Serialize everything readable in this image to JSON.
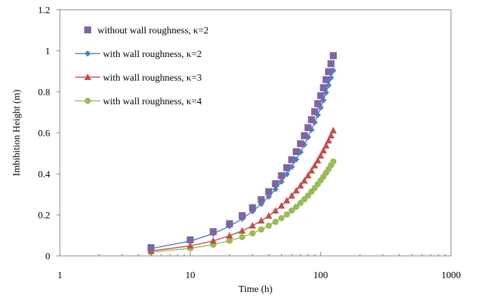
{
  "chart_data": {
    "type": "scatter",
    "title": "",
    "xlabel": "Time (h)",
    "ylabel": "Imbibition Height (m)",
    "x_scale": "log",
    "xlim": [
      1,
      1000
    ],
    "ylim": [
      0,
      1.2
    ],
    "x_ticks": [
      1,
      10,
      100,
      1000
    ],
    "x_tick_labels": [
      "1",
      "10",
      "100",
      "1000"
    ],
    "y_ticks": [
      0,
      0.2,
      0.4,
      0.6,
      0.8,
      1,
      1.2
    ],
    "y_tick_labels": [
      "0",
      "0.2",
      "0.4",
      "0.6",
      "0.8",
      "1",
      "1.2"
    ],
    "grid": false,
    "legend_position": "top-left",
    "series": [
      {
        "name": "without wall roughness, κ=2",
        "color": "#8064a2",
        "marker": "square",
        "line": false,
        "x": [
          5,
          10,
          15,
          20,
          25,
          30,
          35,
          40,
          45,
          50,
          55,
          60,
          65,
          70,
          75,
          80,
          85,
          90,
          95,
          100,
          105,
          110,
          115,
          120,
          125
        ],
        "y": [
          0.04,
          0.078,
          0.118,
          0.157,
          0.196,
          0.235,
          0.274,
          0.313,
          0.352,
          0.391,
          0.43,
          0.469,
          0.508,
          0.547,
          0.586,
          0.625,
          0.664,
          0.703,
          0.742,
          0.781,
          0.82,
          0.859,
          0.898,
          0.937,
          0.976
        ]
      },
      {
        "name": "with wall roughness, κ=2",
        "color": "#4f81bd",
        "marker": "diamond",
        "line": true,
        "x": [
          5,
          10,
          15,
          20,
          25,
          30,
          35,
          40,
          45,
          50,
          55,
          60,
          65,
          70,
          75,
          80,
          85,
          90,
          95,
          100,
          105,
          110,
          115,
          120,
          125
        ],
        "y": [
          0.036,
          0.072,
          0.108,
          0.145,
          0.181,
          0.217,
          0.253,
          0.289,
          0.325,
          0.362,
          0.398,
          0.434,
          0.47,
          0.506,
          0.542,
          0.579,
          0.615,
          0.651,
          0.687,
          0.723,
          0.759,
          0.796,
          0.832,
          0.868,
          0.904
        ]
      },
      {
        "name": "with wall roughness, κ=3",
        "color": "#c0504d",
        "marker": "triangle",
        "line": true,
        "x": [
          5,
          10,
          15,
          20,
          25,
          30,
          35,
          40,
          45,
          50,
          55,
          60,
          65,
          70,
          75,
          80,
          85,
          90,
          95,
          100,
          105,
          110,
          115,
          120,
          125
        ],
        "y": [
          0.024,
          0.049,
          0.073,
          0.098,
          0.122,
          0.147,
          0.171,
          0.195,
          0.22,
          0.244,
          0.269,
          0.293,
          0.318,
          0.342,
          0.366,
          0.391,
          0.415,
          0.44,
          0.464,
          0.488,
          0.513,
          0.537,
          0.562,
          0.586,
          0.611
        ]
      },
      {
        "name": "with wall roughness, κ=4",
        "color": "#9bbb59",
        "marker": "circle",
        "line": true,
        "x": [
          5,
          10,
          15,
          20,
          25,
          30,
          35,
          40,
          45,
          50,
          55,
          60,
          65,
          70,
          75,
          80,
          85,
          90,
          95,
          100,
          105,
          110,
          115,
          120,
          125
        ],
        "y": [
          0.018,
          0.037,
          0.055,
          0.074,
          0.092,
          0.11,
          0.129,
          0.147,
          0.166,
          0.184,
          0.202,
          0.221,
          0.239,
          0.258,
          0.276,
          0.294,
          0.313,
          0.331,
          0.35,
          0.368,
          0.386,
          0.405,
          0.423,
          0.442,
          0.46
        ]
      }
    ]
  }
}
